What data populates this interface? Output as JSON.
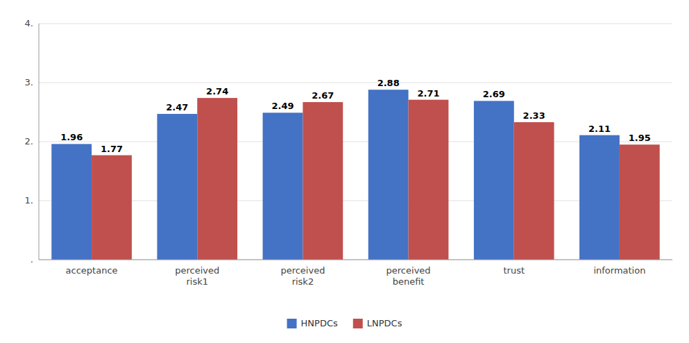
{
  "chart_data": {
    "type": "bar",
    "categories": [
      "acceptance",
      "perceived\nrisk1",
      "perceived\nrisk2",
      "perceived\nbenefit",
      "trust",
      "information"
    ],
    "series": [
      {
        "name": "HNPDCs",
        "color": "#4472C4",
        "values": [
          1.96,
          2.47,
          2.49,
          2.88,
          2.69,
          2.11
        ]
      },
      {
        "name": "LNPDCs",
        "color": "#C0504D",
        "values": [
          1.77,
          2.74,
          2.67,
          2.71,
          2.33,
          1.95
        ]
      }
    ],
    "ylim": [
      0,
      4.0
    ],
    "yticks": [
      {
        "value": 0,
        "label": "."
      },
      {
        "value": 1.0,
        "label": "1."
      },
      {
        "value": 2.0,
        "label": "2."
      },
      {
        "value": 3.0,
        "label": "3."
      },
      {
        "value": 4.0,
        "label": "4."
      }
    ],
    "grid": true,
    "data_labels": true,
    "legend": "bottom"
  }
}
